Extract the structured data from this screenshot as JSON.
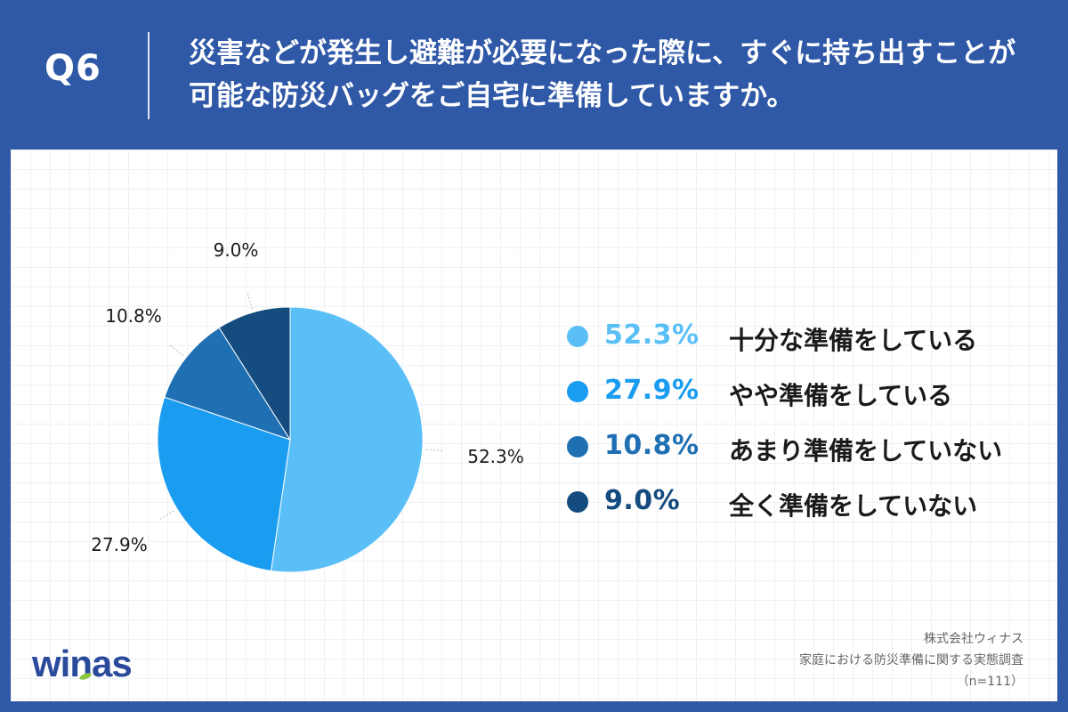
{
  "header": {
    "question_number": "Q6",
    "question_text": "災害などが発生し避難が必要になった際に、すぐに持ち出すことが可能な防災バッグをご自宅に準備していますか。"
  },
  "chart_data": {
    "type": "pie",
    "slices": [
      {
        "label": "十分な準備をしている",
        "value": 52.3,
        "value_label": "52.3%",
        "color": "#5bbff7"
      },
      {
        "label": "やや準備をしている",
        "value": 27.9,
        "value_label": "27.9%",
        "color": "#1a9cf0"
      },
      {
        "label": "あまり準備をしていない",
        "value": 10.8,
        "value_label": "10.8%",
        "color": "#1f6fb3"
      },
      {
        "label": "全く準備をしていない",
        "value": 9.0,
        "value_label": "9.0%",
        "color": "#154c7f"
      }
    ],
    "legend_position": "right"
  },
  "footer": {
    "logo_text": "winas",
    "company": "株式会社ウィナス",
    "survey_name": "家庭における防災準備に関する実態調査",
    "sample_size": "（n=111）"
  }
}
